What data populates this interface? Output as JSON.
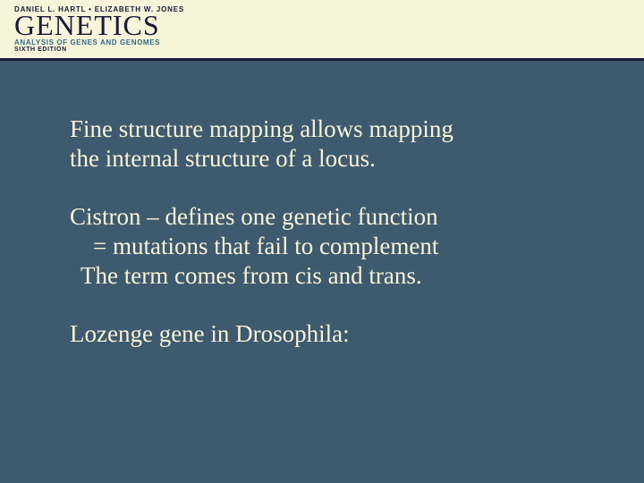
{
  "header": {
    "authors": "DANIEL L. HARTL • ELIZABETH W. JONES",
    "title": "GENETICS",
    "subtitle": "ANALYSIS OF GENES AND GENOMES",
    "edition": "SIXTH EDITION",
    "background_color": "#f7f4d9",
    "rule_color": "#1a1a3a",
    "title_color": "#1a1a3a",
    "subtitle_color": "#346a8a"
  },
  "slide": {
    "background_color": "#3e5a6e",
    "text_color": "#f7f4d9",
    "font_family": "Times New Roman",
    "font_size_pt": 20,
    "paragraphs": {
      "p1_line1": "Fine structure mapping allows mapping",
      "p1_line2": "the internal structure of a locus.",
      "p2_line1": "Cistron – defines one genetic function",
      "p2_line2": "= mutations that fail to complement",
      "p2_line3": "The term comes from cis and trans.",
      "p3_line1": "Lozenge gene in Drosophila:"
    }
  }
}
